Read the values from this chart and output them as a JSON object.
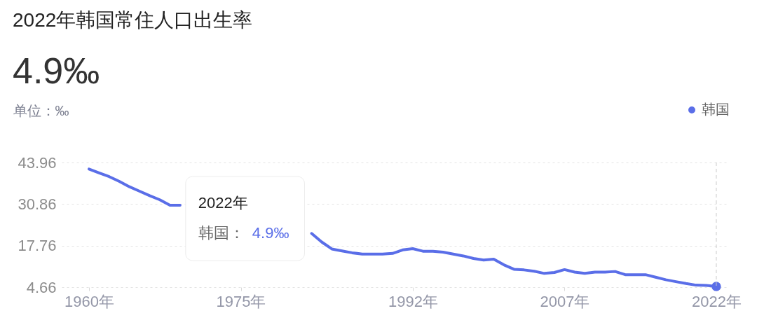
{
  "chart_data": {
    "type": "line",
    "title": "2022年韩国常住人口出生率",
    "subtitle": "4.9‰",
    "ylabel": "单位：‰",
    "categories": [
      "1960年",
      null,
      null,
      null,
      null,
      null,
      null,
      null,
      null,
      null,
      null,
      null,
      null,
      null,
      null,
      "1975年",
      null,
      null,
      null,
      null,
      null,
      null,
      null,
      null,
      null,
      null,
      null,
      null,
      null,
      null,
      null,
      null,
      "1992年",
      null,
      null,
      null,
      null,
      null,
      null,
      null,
      null,
      null,
      null,
      null,
      null,
      null,
      null,
      "2007年",
      null,
      null,
      null,
      null,
      null,
      null,
      null,
      null,
      null,
      null,
      null,
      null,
      null,
      null,
      "2022年"
    ],
    "series": [
      {
        "name": "韩国",
        "color": "#5a6ee8",
        "values": [
          41.9,
          40.7,
          39.5,
          38.0,
          36.3,
          34.9,
          33.5,
          32.2,
          30.5,
          30.5,
          null,
          null,
          null,
          null,
          null,
          null,
          null,
          null,
          null,
          null,
          null,
          null,
          21.6,
          18.9,
          16.7,
          16.1,
          15.5,
          15.1,
          15.1,
          15.1,
          15.3,
          16.4,
          16.8,
          16.0,
          16.0,
          15.7,
          15.1,
          14.5,
          13.7,
          13.2,
          13.5,
          11.7,
          10.3,
          10.1,
          9.7,
          9.0,
          9.3,
          10.2,
          9.4,
          9.0,
          9.4,
          9.4,
          9.6,
          8.6,
          8.6,
          8.6,
          7.8,
          7.0,
          6.4,
          5.8,
          5.3,
          5.2,
          4.9
        ]
      },
      {
        "type": "scatter",
        "color": "#5a6ee8",
        "marker": "circle",
        "values": [
          null,
          null,
          null,
          null,
          null,
          null,
          null,
          null,
          null,
          null,
          null,
          null,
          null,
          null,
          null,
          null,
          null,
          null,
          null,
          null,
          null,
          null,
          null,
          null,
          null,
          null,
          null,
          null,
          null,
          null,
          null,
          null,
          null,
          null,
          null,
          null,
          null,
          null,
          null,
          null,
          null,
          null,
          null,
          null,
          null,
          null,
          null,
          null,
          null,
          null,
          null,
          null,
          null,
          null,
          null,
          null,
          null,
          null,
          null,
          null,
          null,
          null,
          4.9
        ]
      }
    ],
    "ylim": [
      4.66,
      43.96
    ],
    "yticks": [
      4.66,
      17.76,
      30.86,
      43.96
    ],
    "grid": "y",
    "legend": "top right",
    "line_style": "solid",
    "ref_lines": [
      {
        "axis": "x",
        "value": "2022年",
        "color": "#c8c8c8",
        "line_style": "dashed"
      }
    ],
    "annotations": [
      "2022年",
      "韩国：",
      "4.9‰"
    ]
  }
}
